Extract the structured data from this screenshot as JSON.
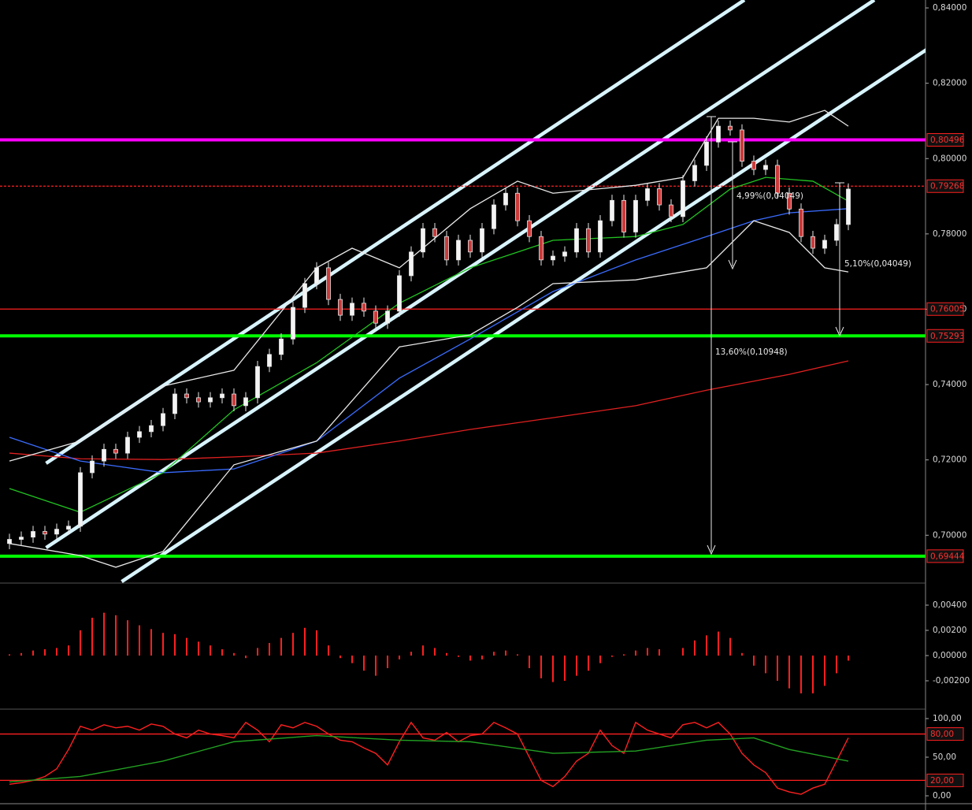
{
  "chart_data": [
    {
      "type": "candlestick",
      "ylim": [
        0.6873,
        0.8421
      ],
      "yticks": [
        {
          "value": 0.84,
          "label": "0,84000"
        },
        {
          "value": 0.82,
          "label": "0,82000"
        },
        {
          "value": 0.8,
          "label": "0,80000"
        },
        {
          "value": 0.78,
          "label": "0,78000"
        },
        {
          "value": 0.76,
          "label": "0,76000"
        },
        {
          "value": 0.74,
          "label": "0,74000"
        },
        {
          "value": 0.72,
          "label": "0,72000"
        },
        {
          "value": 0.7,
          "label": "0,70000"
        }
      ],
      "open": [
        0.6978,
        0.6989,
        0.6995,
        0.701,
        0.7003,
        0.7016,
        0.7024,
        0.7166,
        0.7197,
        0.7228,
        0.7218,
        0.726,
        0.7275,
        0.7291,
        0.7323,
        0.7375,
        0.7365,
        0.7354,
        0.7365,
        0.7375,
        0.7344,
        0.7365,
        0.7448,
        0.748,
        0.7521,
        0.7605,
        0.7668,
        0.771,
        0.7626,
        0.7584,
        0.7616,
        0.7595,
        0.7563,
        0.7595,
        0.7689,
        0.7752,
        0.7814,
        0.7793,
        0.7731,
        0.7783,
        0.7752,
        0.7814,
        0.7877,
        0.7908,
        0.7835,
        0.7793,
        0.7731,
        0.7741,
        0.7752,
        0.7814,
        0.7752,
        0.7835,
        0.7889,
        0.7805,
        0.7889,
        0.792,
        0.7877,
        0.7846,
        0.7941,
        0.7982,
        0.8044,
        0.8086,
        0.8076,
        0.7993,
        0.7971,
        0.7982,
        0.7908,
        0.7866,
        0.7793,
        0.7762,
        0.7783,
        0.7825
      ],
      "high": [
        0.7004,
        0.701,
        0.7025,
        0.7025,
        0.7031,
        0.7039,
        0.7181,
        0.7212,
        0.7243,
        0.7243,
        0.7275,
        0.729,
        0.7306,
        0.7338,
        0.739,
        0.739,
        0.738,
        0.738,
        0.739,
        0.739,
        0.738,
        0.7463,
        0.7495,
        0.7536,
        0.762,
        0.7683,
        0.7725,
        0.7725,
        0.7641,
        0.7631,
        0.7631,
        0.761,
        0.761,
        0.7704,
        0.7767,
        0.7829,
        0.7829,
        0.7808,
        0.7798,
        0.7798,
        0.7829,
        0.7892,
        0.7923,
        0.7923,
        0.785,
        0.7808,
        0.7756,
        0.7767,
        0.7829,
        0.7829,
        0.785,
        0.7904,
        0.7904,
        0.7904,
        0.7935,
        0.7935,
        0.7892,
        0.7956,
        0.7997,
        0.8059,
        0.8101,
        0.8101,
        0.8091,
        0.8008,
        0.7997,
        0.7997,
        0.7923,
        0.7881,
        0.7808,
        0.7798,
        0.784,
        0.7934
      ],
      "low": [
        0.6963,
        0.6974,
        0.698,
        0.6988,
        0.6988,
        0.7001,
        0.7009,
        0.7151,
        0.7182,
        0.7203,
        0.7203,
        0.7245,
        0.726,
        0.7276,
        0.7308,
        0.735,
        0.7339,
        0.7339,
        0.735,
        0.7329,
        0.7329,
        0.735,
        0.7433,
        0.7465,
        0.7506,
        0.759,
        0.7653,
        0.7611,
        0.7569,
        0.7569,
        0.758,
        0.7548,
        0.7548,
        0.758,
        0.7674,
        0.7737,
        0.7778,
        0.7716,
        0.7716,
        0.7737,
        0.7737,
        0.7799,
        0.7862,
        0.782,
        0.7778,
        0.7716,
        0.7716,
        0.7726,
        0.7737,
        0.7737,
        0.7737,
        0.782,
        0.779,
        0.779,
        0.7874,
        0.7862,
        0.7831,
        0.7831,
        0.7926,
        0.7967,
        0.8029,
        0.8061,
        0.7978,
        0.7956,
        0.7956,
        0.7893,
        0.7851,
        0.7778,
        0.7747,
        0.7747,
        0.7768,
        0.781
      ],
      "close": [
        0.6989,
        0.6995,
        0.701,
        0.7003,
        0.7016,
        0.7024,
        0.7166,
        0.7197,
        0.7228,
        0.7218,
        0.726,
        0.7275,
        0.7291,
        0.7323,
        0.7375,
        0.7365,
        0.7354,
        0.7365,
        0.7375,
        0.7344,
        0.7365,
        0.7448,
        0.748,
        0.7521,
        0.7605,
        0.7668,
        0.771,
        0.7626,
        0.7584,
        0.7616,
        0.7595,
        0.7563,
        0.7595,
        0.7689,
        0.7752,
        0.7814,
        0.7793,
        0.7731,
        0.7783,
        0.7752,
        0.7814,
        0.7877,
        0.7908,
        0.7835,
        0.7793,
        0.7731,
        0.7741,
        0.7752,
        0.7814,
        0.7752,
        0.7835,
        0.7889,
        0.7805,
        0.7889,
        0.792,
        0.7877,
        0.7846,
        0.7941,
        0.7982,
        0.8044,
        0.8086,
        0.8076,
        0.7993,
        0.7971,
        0.7982,
        0.7908,
        0.7866,
        0.7793,
        0.7762,
        0.7783,
        0.7825,
        0.7919
      ],
      "overlays": [
        {
          "color": "#e02020",
          "x": [
            0,
            6,
            13,
            19,
            26,
            33,
            39,
            46,
            53,
            59,
            66,
            71
          ],
          "values": [
            0.7218,
            0.7203,
            0.7201,
            0.7208,
            0.7218,
            0.725,
            0.7281,
            0.7312,
            0.7344,
            0.7385,
            0.7427,
            0.7463
          ]
        },
        {
          "color": "#3a6cff",
          "x": [
            0,
            6,
            13,
            19,
            26,
            33,
            39,
            46,
            53,
            59,
            63,
            66,
            71
          ],
          "values": [
            0.726,
            0.7197,
            0.7166,
            0.7176,
            0.725,
            0.7417,
            0.7521,
            0.7647,
            0.7731,
            0.7793,
            0.7835,
            0.7856,
            0.7867
          ]
        },
        {
          "color": "#22c422",
          "x": [
            0,
            6,
            13,
            19,
            26,
            33,
            39,
            46,
            53,
            57,
            61,
            64,
            68,
            71
          ],
          "values": [
            0.7124,
            0.7061,
            0.7166,
            0.7333,
            0.7458,
            0.7616,
            0.771,
            0.7783,
            0.7793,
            0.7825,
            0.7919,
            0.795,
            0.794,
            0.7887
          ]
        },
        {
          "color": "#e8e8e8",
          "x": [
            0,
            6,
            13,
            19,
            26,
            29,
            33,
            39,
            43,
            46,
            53,
            57,
            60,
            63,
            66,
            69,
            71
          ],
          "values": [
            0.7197,
            0.725,
            0.7396,
            0.7438,
            0.771,
            0.7762,
            0.771,
            0.7867,
            0.794,
            0.7908,
            0.7929,
            0.795,
            0.8107,
            0.8107,
            0.8097,
            0.8128,
            0.8086
          ]
        },
        {
          "color": "#e8e8e8",
          "x": [
            0,
            6,
            9,
            13,
            19,
            26,
            33,
            39,
            43,
            46,
            53,
            59,
            63,
            66,
            69,
            71
          ],
          "values": [
            0.6978,
            0.6946,
            0.6915,
            0.6957,
            0.7187,
            0.725,
            0.75,
            0.7532,
            0.7605,
            0.7668,
            0.7678,
            0.771,
            0.7835,
            0.7804,
            0.771,
            0.7699
          ]
        }
      ],
      "trendlines": [
        {
          "color": "#d8f4ff",
          "x": [
            3.1,
            62.2
          ],
          "values": [
            0.7191,
            0.8421
          ]
        },
        {
          "color": "#d8f4ff",
          "x": [
            3.1,
            73.2
          ],
          "values": [
            0.6967,
            0.8421
          ]
        },
        {
          "color": "#d8f4ff",
          "x": [
            9.5,
            77.7
          ],
          "values": [
            0.6877,
            0.8291
          ]
        }
      ],
      "levels": [
        {
          "value": 0.80496,
          "label": "0,80496",
          "color": "#ff00ff",
          "style": "thick"
        },
        {
          "value": 0.79268,
          "label": "0,79268",
          "color": "#ff2020",
          "style": "dashed"
        },
        {
          "value": 0.76005,
          "label": "0,76005",
          "color": "#ff2020",
          "style": "thin"
        },
        {
          "value": 0.75293,
          "label": "0,75293",
          "color": "#00ff00",
          "style": "thick"
        },
        {
          "value": 0.69444,
          "label": "0,69444",
          "color": "#00ff00",
          "style": "thick"
        }
      ],
      "annotations": [
        "4,99%(0,04049)",
        "5,10%(0,04049)",
        "13,60%(0,10948)"
      ]
    },
    {
      "type": "bar",
      "ylim": [
        -0.00425,
        0.00575
      ],
      "yticks": [
        {
          "value": 0.004,
          "label": "0,00400"
        },
        {
          "value": 0.002,
          "label": "0,00200"
        },
        {
          "value": 0,
          "label": "0,00000"
        },
        {
          "value": -0.002,
          "label": "-0,00200"
        }
      ],
      "color": "#ff2020",
      "values": [
        0.0001,
        0.0002,
        0.0004,
        0.0005,
        0.0006,
        0.0008,
        0.002,
        0.003,
        0.0034,
        0.0032,
        0.0028,
        0.0024,
        0.0021,
        0.0018,
        0.0017,
        0.0014,
        0.0011,
        0.0008,
        0.0005,
        0.0002,
        -0.0002,
        0.0006,
        0.001,
        0.0014,
        0.0018,
        0.0022,
        0.002,
        0.0008,
        -0.0002,
        -0.0006,
        -0.0012,
        -0.0016,
        -0.001,
        -0.0003,
        0.0003,
        0.0008,
        0.0006,
        0.0002,
        -0.0001,
        -0.0004,
        -0.0003,
        0.0003,
        0.0004,
        0.0001,
        -0.001,
        -0.0018,
        -0.0021,
        -0.002,
        -0.0016,
        -0.0012,
        -0.0006,
        -0.0001,
        0.0001,
        0.0004,
        0.0006,
        0.0005,
        0.0,
        0.0006,
        0.0012,
        0.0016,
        0.0019,
        0.0014,
        0.0002,
        -0.0008,
        -0.0014,
        -0.002,
        -0.0026,
        -0.003,
        -0.003,
        -0.0024,
        -0.0014,
        -0.0004
      ]
    },
    {
      "type": "line",
      "ylim": [
        -10.2,
        112.2
      ],
      "yticks": [
        {
          "value": 100,
          "label": "100,00"
        },
        {
          "value": 50,
          "label": "50,00"
        },
        {
          "value": 0,
          "label": "0,00"
        }
      ],
      "series": [
        {
          "color": "#ff2020",
          "values": [
            15,
            17,
            20,
            25,
            35,
            60,
            90,
            85,
            92,
            88,
            90,
            85,
            93,
            90,
            80,
            75,
            85,
            80,
            78,
            75,
            95,
            85,
            70,
            92,
            88,
            95,
            90,
            80,
            72,
            70,
            62,
            55,
            40,
            70,
            95,
            75,
            72,
            82,
            70,
            78,
            80,
            95,
            88,
            80,
            50,
            20,
            12,
            25,
            45,
            55,
            85,
            65,
            55,
            95,
            85,
            80,
            75,
            92,
            95,
            88,
            95,
            80,
            55,
            40,
            30,
            10,
            5,
            2,
            10,
            15,
            45,
            75
          ]
        },
        {
          "color": "#22a022",
          "x": [
            0,
            6,
            13,
            19,
            26,
            33,
            39,
            46,
            53,
            59,
            63,
            66,
            71
          ],
          "values": [
            18,
            25,
            45,
            70,
            78,
            72,
            70,
            55,
            58,
            72,
            75,
            60,
            45
          ]
        }
      ],
      "levels": [
        {
          "value": 80,
          "label": "80,00",
          "color": "#ff2020",
          "style": "thin"
        },
        {
          "value": 20,
          "label": "20,00",
          "color": "#ff2020",
          "style": "thin"
        }
      ]
    }
  ]
}
